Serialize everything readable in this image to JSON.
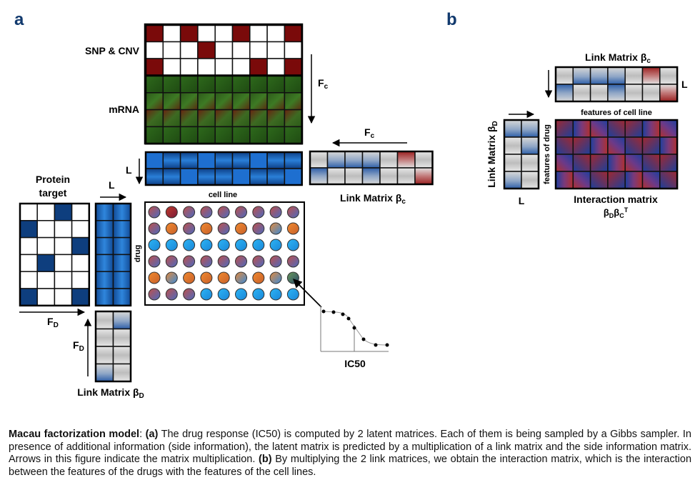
{
  "panel_a": {
    "letter": "a",
    "snp_cnv_label": "SNP & CNV",
    "mrna_label": "mRNA",
    "fc_label_1": "Fc",
    "fc_label_2": "Fc",
    "l_label_cell": "L",
    "cell_line_label": "cell line",
    "link_matrix_c_label": "Link Matrix βc",
    "protein_target_line1": "Protein",
    "protein_target_line2": "target",
    "l_label_drug": "L",
    "drug_label": "drug",
    "fd_label_1": "FD",
    "fd_label_2": "FD",
    "link_matrix_d_label": "Link Matrix βD",
    "ic50_label": "IC50"
  },
  "panel_b": {
    "letter": "b",
    "link_matrix_c_label": "Link Matrix βc",
    "l_label_right": "L",
    "features_cell_line_label": "features of cell line",
    "link_matrix_d_label": "Link Matrix βD",
    "features_drug_label": "features of drug",
    "l_label_bottom": "L",
    "interaction_label_line1": "Interaction matrix",
    "interaction_label_line2": "βDβCT"
  },
  "caption": {
    "title": "Macau factorization model",
    "part_a_marker": "(a)",
    "part_a_text": " The drug response (IC50) is computed by 2 latent matrices. Each of them is being sampled by a Gibbs sampler. In presence of additional information (side information), the latent matrix is predicted by a multiplication of a link matrix and the side information matrix. Arrows in this figure indicate the matrix multiplication. ",
    "part_b_marker": "(b)",
    "part_b_text": " By multiplying the 2 link matrices, we obtain the interaction matrix, which is the interaction between the features of the drugs with the features of the cell lines."
  },
  "colors": {
    "dark_red": "#7a0a0a",
    "blue": "#1e6fd0",
    "navy": "#0e3e7e",
    "orange": "#e8762c",
    "light_blue": "#1aa3ee",
    "purple": "#8b4f9a"
  }
}
